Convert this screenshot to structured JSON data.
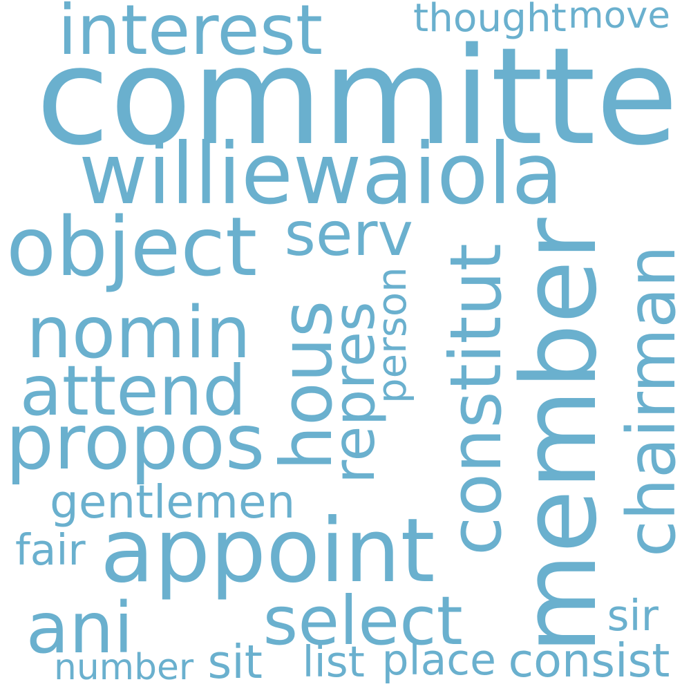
{
  "word_color": "#6AB0CE",
  "background_color": "#FFFFFF",
  "words": [
    {
      "text": "committe",
      "orientation": "horizontal"
    },
    {
      "text": "member",
      "orientation": "vertical"
    },
    {
      "text": "williewaiola",
      "orientation": "horizontal"
    },
    {
      "text": "appoint",
      "orientation": "horizontal"
    },
    {
      "text": "constitut",
      "orientation": "vertical"
    },
    {
      "text": "propos",
      "orientation": "horizontal"
    },
    {
      "text": "interest",
      "orientation": "horizontal"
    },
    {
      "text": "nomin",
      "orientation": "horizontal"
    },
    {
      "text": "object",
      "orientation": "horizontal"
    },
    {
      "text": "select",
      "orientation": "horizontal"
    },
    {
      "text": "attend",
      "orientation": "horizontal"
    },
    {
      "text": "chairman",
      "orientation": "vertical"
    },
    {
      "text": "hous",
      "orientation": "vertical"
    },
    {
      "text": "serv",
      "orientation": "horizontal"
    },
    {
      "text": "repres",
      "orientation": "vertical"
    },
    {
      "text": "ani",
      "orientation": "horizontal"
    },
    {
      "text": "gentlemen",
      "orientation": "horizontal"
    },
    {
      "text": "person",
      "orientation": "vertical"
    },
    {
      "text": "consist",
      "orientation": "horizontal"
    },
    {
      "text": "place",
      "orientation": "horizontal"
    },
    {
      "text": "sit",
      "orientation": "horizontal"
    },
    {
      "text": "list",
      "orientation": "horizontal"
    },
    {
      "text": "number",
      "orientation": "horizontal"
    },
    {
      "text": "move",
      "orientation": "horizontal"
    },
    {
      "text": "thought",
      "orientation": "horizontal"
    },
    {
      "text": "fair",
      "orientation": "horizontal"
    },
    {
      "text": "sir",
      "orientation": "horizontal"
    }
  ]
}
